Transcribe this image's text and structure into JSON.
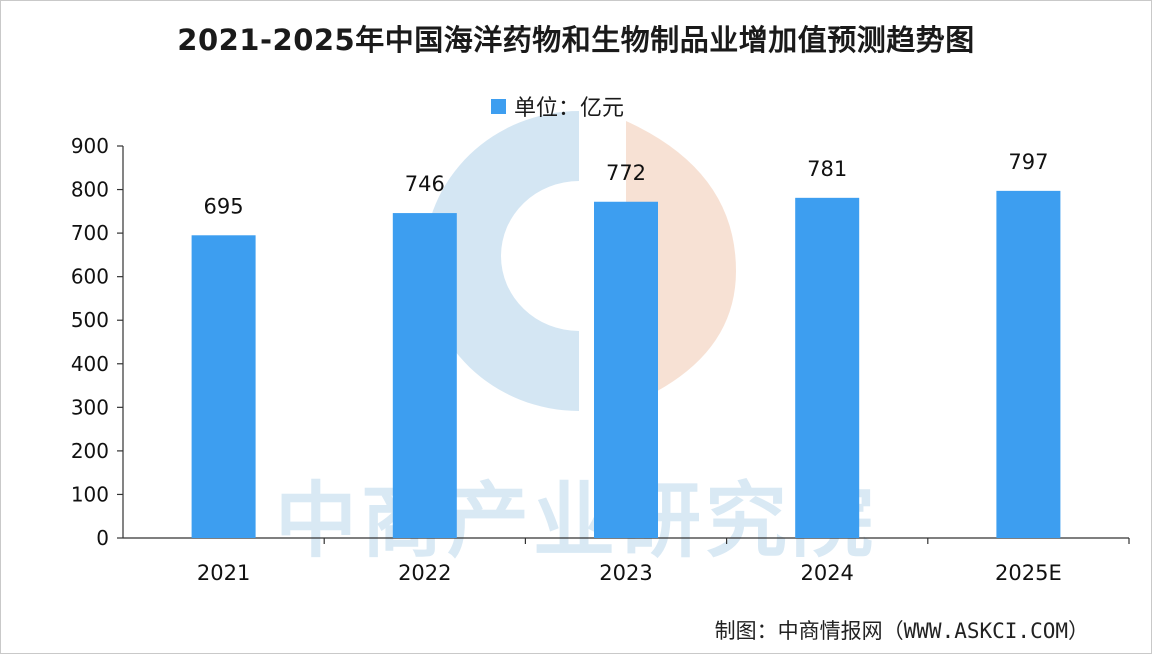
{
  "title": "2021-2025年中国海洋药物和生物制品业增加值预测趋势图",
  "legend": {
    "label": "单位：亿元"
  },
  "watermark": "中商产业研究院",
  "source": "制图：中商情报网（WWW.ASKCI.COM）",
  "colors": {
    "bar": "#3d9ef0",
    "watermark_blue": "#cde2f1",
    "watermark_orange": "#f6dccd"
  },
  "chart_data": {
    "type": "bar",
    "title": "2021-2025年中国海洋药物和生物制品业增加值预测趋势图",
    "categories": [
      "2021",
      "2022",
      "2023",
      "2024",
      "2025E"
    ],
    "series": [
      {
        "name": "单位：亿元",
        "values": [
          695,
          746,
          772,
          781,
          797
        ]
      }
    ],
    "xlabel": "",
    "ylabel": "",
    "ylim": [
      0,
      900
    ],
    "yticks": [
      0,
      100,
      200,
      300,
      400,
      500,
      600,
      700,
      800,
      900
    ],
    "grid": false,
    "legend_position": "top-center",
    "data_labels": true
  }
}
